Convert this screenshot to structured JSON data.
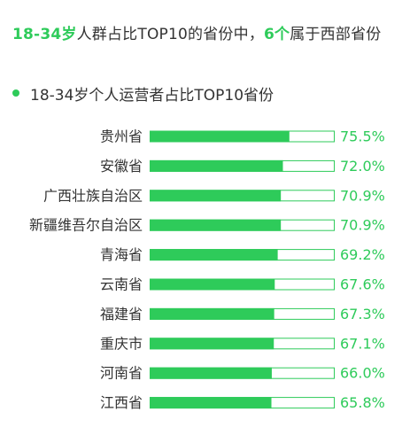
{
  "headline": {
    "part1": "18-34岁",
    "part2": "人群占比TOP10的省份中，",
    "part3": "6个",
    "part4": "属于西部省份"
  },
  "colors": {
    "accent": "#2ecb5a",
    "bar_track_border": "#2ecb5a",
    "bar_track_fill": "#ffffff",
    "text": "#333333"
  },
  "chart_data": {
    "type": "bar",
    "orientation": "horizontal",
    "title": "18-34岁个人运营者占比TOP10省份",
    "legend_placement": "top-left",
    "grid": false,
    "xlim": [
      0,
      100
    ],
    "categories": [
      "贵州省",
      "安徽省",
      "广西壮族自治区",
      "新疆维吾尔自治区",
      "青海省",
      "云南省",
      "福建省",
      "重庆市",
      "河南省",
      "江西省"
    ],
    "values": [
      75.5,
      72.0,
      70.9,
      70.9,
      69.2,
      67.6,
      67.3,
      67.1,
      66.0,
      65.8
    ],
    "value_labels": [
      "75.5%",
      "72.0%",
      "70.9%",
      "70.9%",
      "69.2%",
      "67.6%",
      "67.3%",
      "67.1%",
      "66.0%",
      "65.8%"
    ],
    "unit": "%"
  }
}
